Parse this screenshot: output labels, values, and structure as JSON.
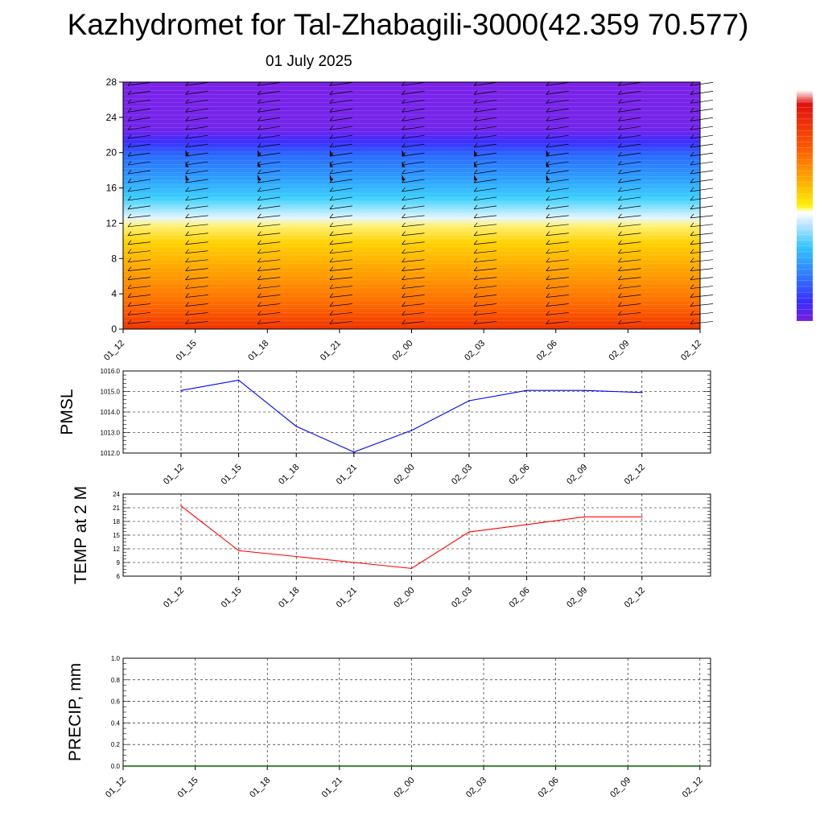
{
  "title": "Kazhydromet for Tal-Zhabagili-3000(42.359 70.577)",
  "subtitle": "01 July 2025",
  "chart_data": [
    {
      "type": "heatmap",
      "panel": "cross-section",
      "ylim": [
        0,
        28
      ],
      "yticks": [
        "0",
        "4",
        "8",
        "12",
        "16",
        "20",
        "24",
        "28"
      ],
      "xticks": [
        "01_12",
        "01_15",
        "01_18",
        "01_21",
        "02_00",
        "02_03",
        "02_06",
        "02_09",
        "02_12"
      ],
      "colormap": [
        "#7a1fd8",
        "#3a2bff",
        "#2f7bff",
        "#33c6ff",
        "#dff4ff",
        "#ffe600",
        "#ffa800",
        "#ff5a00",
        "#d80000"
      ],
      "wind_barb_columns": [
        "01_12",
        "01_15",
        "01_18",
        "01_21",
        "02_00",
        "02_03",
        "02_06",
        "02_09",
        "02_12"
      ]
    },
    {
      "type": "line",
      "ylabel": "PMSL",
      "ylim": [
        1012.0,
        1016.0
      ],
      "yticks": [
        "1012.0",
        "1013.0",
        "1014.0",
        "1015.0",
        "1016.0"
      ],
      "x": [
        "01_12",
        "01_15",
        "01_18",
        "01_21",
        "02_00",
        "02_03",
        "02_06",
        "02_09",
        "02_12"
      ],
      "series": [
        {
          "values": [
            1015.05,
            1015.55,
            1013.3,
            1012.05,
            1013.1,
            1014.55,
            1015.05,
            1015.05,
            1014.95
          ],
          "color": "#0000ff"
        }
      ]
    },
    {
      "type": "line",
      "ylabel": "TEMP at 2 M",
      "ylim": [
        6,
        24
      ],
      "yticks": [
        "6",
        "9",
        "12",
        "15",
        "18",
        "21",
        "24"
      ],
      "x": [
        "01_12",
        "01_15",
        "01_18",
        "01_21",
        "02_00",
        "02_03",
        "02_06",
        "02_09",
        "02_12"
      ],
      "series": [
        {
          "values": [
            21.4,
            11.6,
            10.3,
            9.0,
            7.7,
            15.7,
            17.3,
            19.0,
            19.0
          ],
          "color": "#ff0000"
        }
      ]
    },
    {
      "type": "line",
      "ylabel": "PRECIP, mm",
      "ylim": [
        0.0,
        1.0
      ],
      "yticks": [
        "0.0",
        "0.2",
        "0.4",
        "0.6",
        "0.8",
        "1.0"
      ],
      "xticks": [
        "01_12",
        "01_15",
        "01_18",
        "01_21",
        "02_00",
        "02_03",
        "02_06",
        "02_09",
        "02_12"
      ],
      "series": [
        {
          "values": [
            0,
            0,
            0,
            0,
            0,
            0,
            0,
            0,
            0
          ],
          "color": "#006400"
        }
      ]
    }
  ]
}
